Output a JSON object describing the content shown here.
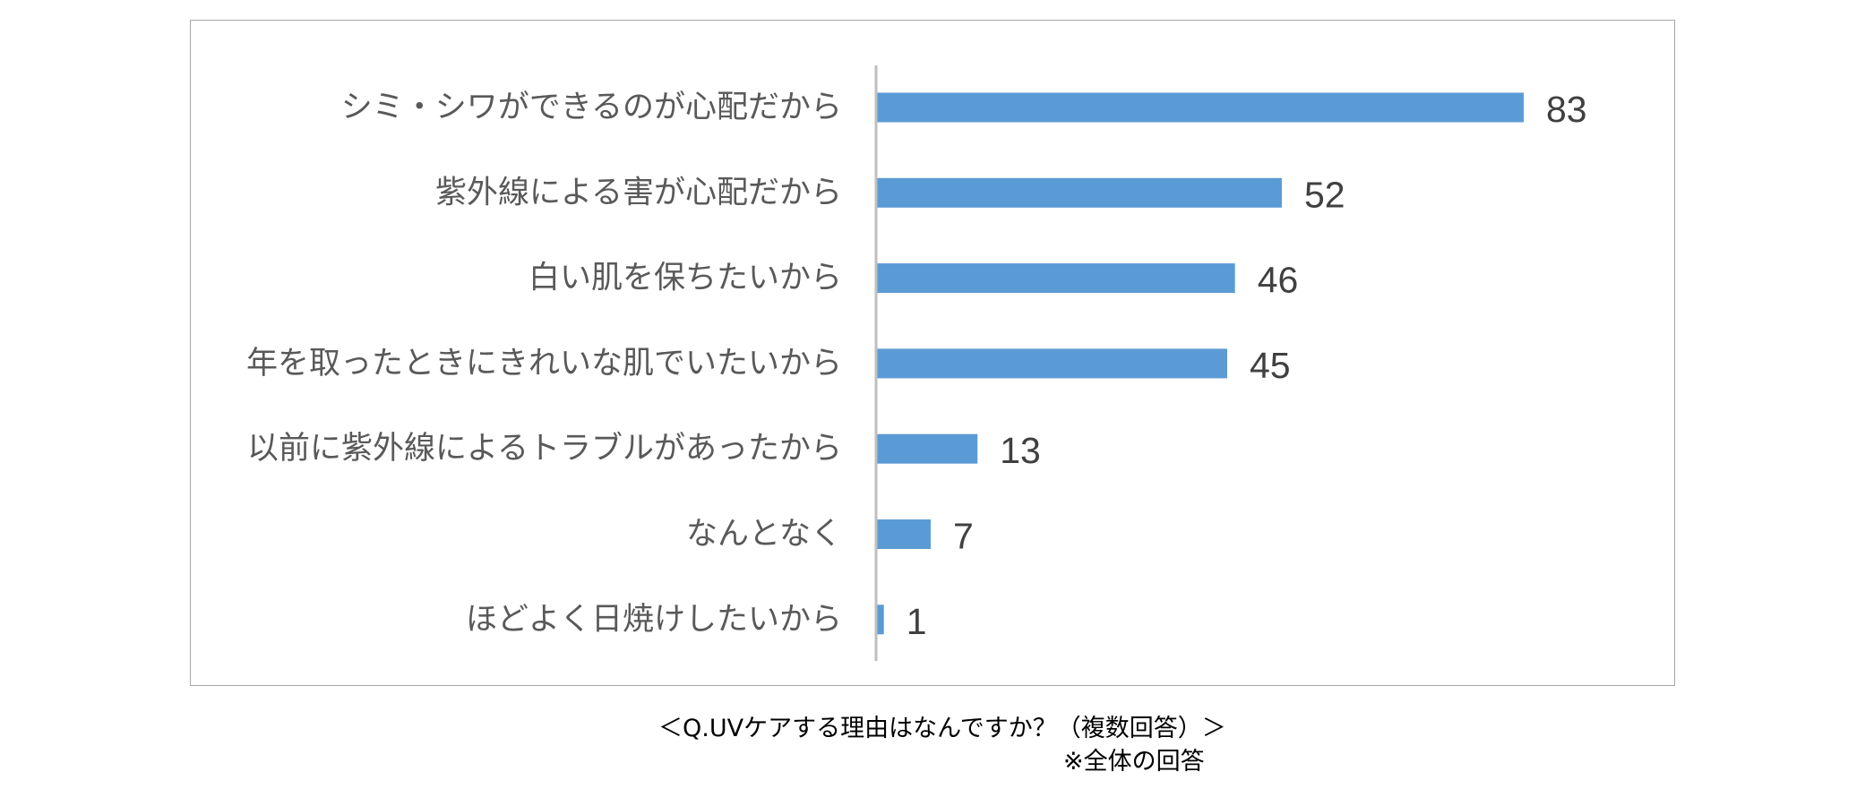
{
  "chart_data": {
    "type": "bar",
    "orientation": "horizontal",
    "categories": [
      "シミ・シワができるのが心配だから",
      "紫外線による害が心配だから",
      "白い肌を保ちたいから",
      "年を取ったときにきれいな肌でいたいから",
      "以前に紫外線によるトラブルがあったから",
      "なんとなく",
      "ほどよく日焼けしたいから"
    ],
    "values": [
      83,
      52,
      46,
      45,
      13,
      7,
      1
    ],
    "xlim": [
      0,
      83
    ],
    "grid": false,
    "data_labels": true,
    "bar_color": "#5b9bd5"
  },
  "caption": {
    "question": "＜Q.UVケアする理由はなんですか？（複数回答）＞",
    "note": "※全体の回答"
  }
}
